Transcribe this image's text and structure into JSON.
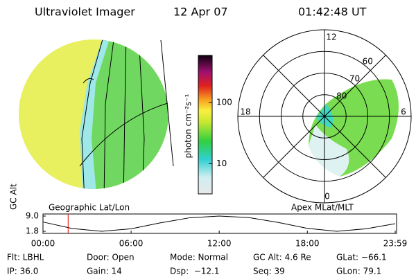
{
  "header": {
    "title": "Ultraviolet Imager",
    "date": "12 Apr 07",
    "time": "01:42:48 UT"
  },
  "colorbar": {
    "label": "photon cm⁻²s⁻¹",
    "scale": "log",
    "lim": [
      3.2,
      590
    ],
    "ticks": [
      10,
      100
    ]
  },
  "captions": {
    "left": "Geographic Lat/Lon",
    "right": "Apex MLat/MLT"
  },
  "polar": {
    "rlim": [
      90,
      50
    ],
    "rings": [
      80,
      70,
      60
    ],
    "mlt_labels": [
      "12",
      "18",
      "0",
      "6"
    ]
  },
  "chart_data": {
    "type": "line",
    "ylabel": "GC Alt",
    "x": [
      0,
      2,
      4,
      6,
      8,
      10,
      12,
      14,
      16,
      18,
      20,
      22,
      23.983
    ],
    "values": [
      6.2,
      3.1,
      1.8,
      3.0,
      5.8,
      8.2,
      9.0,
      8.3,
      6.0,
      3.2,
      1.8,
      3.0,
      5.4
    ],
    "color": "#000000",
    "xlim": [
      0,
      23.983
    ],
    "ylim": [
      1.8,
      9.0
    ],
    "xticks": [
      {
        "value": 0,
        "label": "00:00"
      },
      {
        "value": 6,
        "label": "06:00"
      },
      {
        "value": 12,
        "label": "12:00"
      },
      {
        "value": 18,
        "label": "18:00"
      },
      {
        "value": 23.983,
        "label": "23:59"
      }
    ],
    "yticks": [
      {
        "value": 9.0,
        "label": "9.0"
      },
      1.8
    ],
    "current_time": 1.713,
    "current_color": "#e00000"
  },
  "footer": {
    "rows": [
      [
        "Flt: LBHL",
        "Door: Open",
        "Mode: Normal",
        "GC Alt: 4.6 Re",
        "GLat: −66.1"
      ],
      [
        "IP: 36.0",
        "Gain: 14",
        "Dsp:  −12.1",
        "Seq: 39",
        "GLon: 79.1"
      ]
    ]
  }
}
